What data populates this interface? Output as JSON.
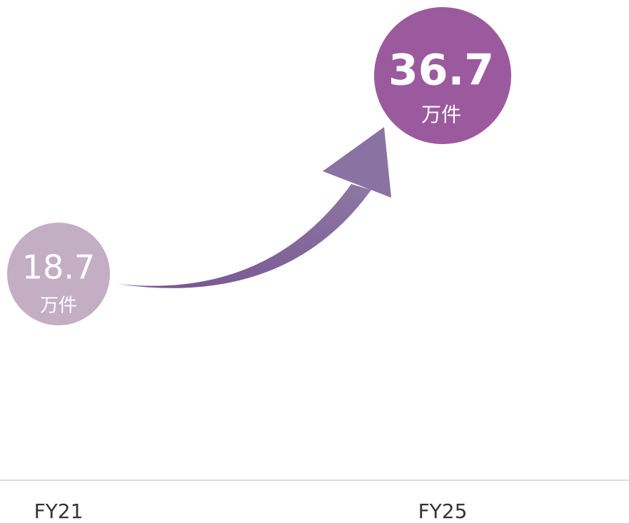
{
  "items": [
    {
      "category": "FY21",
      "value": "18.7",
      "unit": "万件"
    },
    {
      "category": "FY25",
      "value": "36.7",
      "unit": "万件"
    }
  ]
}
